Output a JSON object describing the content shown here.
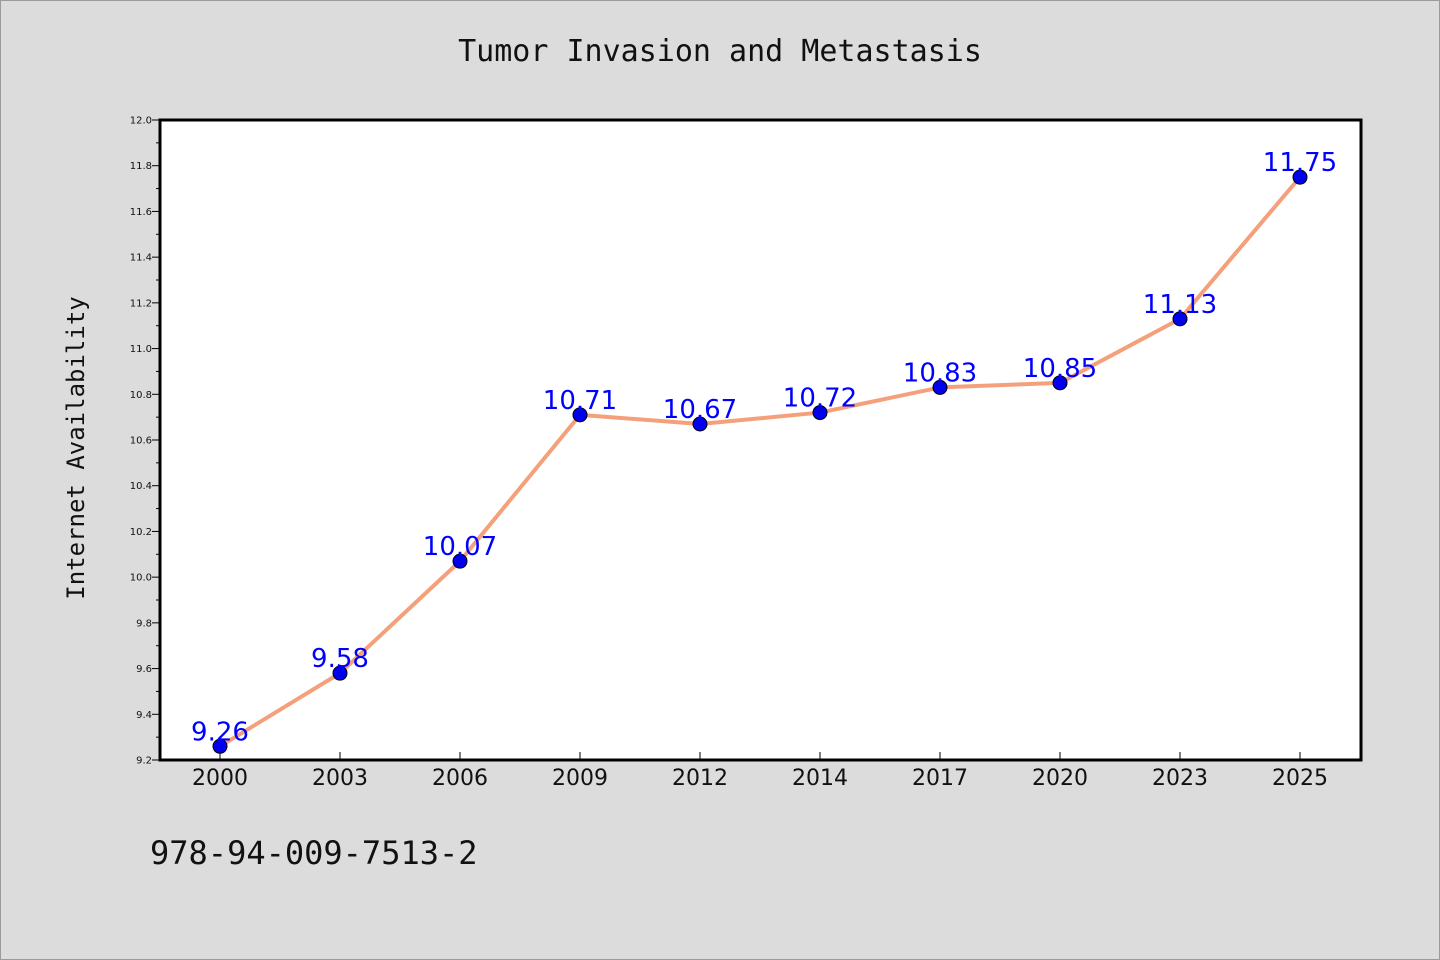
{
  "chart_data": {
    "type": "line",
    "title": "Tumor Invasion and Metastasis",
    "ylabel": "Internet Availability",
    "xlabel": "",
    "categories": [
      "2000",
      "2003",
      "2006",
      "2009",
      "2012",
      "2014",
      "2017",
      "2020",
      "2023",
      "2025"
    ],
    "series": [
      {
        "values": [
          9.26,
          9.58,
          10.07,
          10.71,
          10.67,
          10.72,
          10.83,
          10.85,
          11.13,
          11.75
        ],
        "labels": [
          "9.26",
          "9.58",
          "10.07",
          "10.71",
          "10.67",
          "10.72",
          "10.83",
          "10.85",
          "11.13",
          "11.75"
        ],
        "line_color": "#f4a07a",
        "marker_color": "#0000ee"
      }
    ],
    "ylim": [
      9.2,
      12.0
    ],
    "y_ticks": [
      "9.2",
      "9.4",
      "9.6",
      "9.8",
      "10.0",
      "10.2",
      "10.4",
      "10.6",
      "10.8",
      "11.0",
      "11.2",
      "11.4",
      "11.6",
      "11.8",
      "12.0"
    ],
    "grid": false,
    "legend": "none"
  },
  "footer": {
    "code": "978-94-009-7513-2"
  },
  "colors": {
    "background": "#dcdcdc",
    "plot_background": "#ffffff",
    "data_label": "#0000ff"
  }
}
